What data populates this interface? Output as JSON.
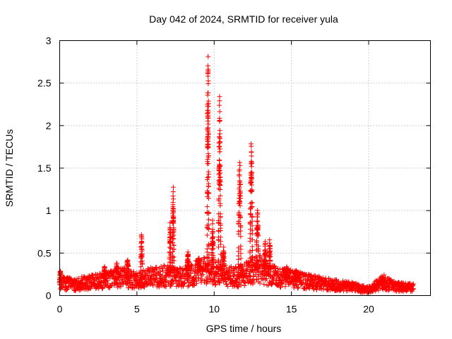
{
  "chart_data": {
    "type": "scatter",
    "title": "Day 042 of 2024, SRMTID for receiver yula",
    "xlabel": "GPS time / hours",
    "ylabel": "SRMTID / TECUs",
    "xlim": [
      0,
      24
    ],
    "ylim": [
      0,
      3
    ],
    "xticks": [
      0,
      5,
      10,
      15,
      20
    ],
    "xtick_labels": [
      "0",
      "5",
      "10",
      "15",
      "20"
    ],
    "yticks": [
      0,
      0.5,
      1,
      1.5,
      2,
      2.5,
      3
    ],
    "ytick_labels": [
      "0",
      "0.5",
      "1",
      "1.5",
      "2",
      "2.5",
      "3"
    ],
    "grid": true,
    "marker": "+",
    "color": "#ff0000",
    "series": [
      {
        "name": "SRMTID",
        "baseline": [
          [
            0.0,
            0.15
          ],
          [
            1.0,
            0.13
          ],
          [
            2.0,
            0.16
          ],
          [
            3.0,
            0.18
          ],
          [
            3.5,
            0.2
          ],
          [
            4.0,
            0.22
          ],
          [
            4.5,
            0.2
          ],
          [
            5.0,
            0.18
          ],
          [
            5.5,
            0.2
          ],
          [
            6.0,
            0.22
          ],
          [
            6.5,
            0.22
          ],
          [
            7.0,
            0.24
          ],
          [
            7.5,
            0.22
          ],
          [
            8.0,
            0.22
          ],
          [
            8.5,
            0.24
          ],
          [
            9.0,
            0.28
          ],
          [
            9.5,
            0.3
          ],
          [
            10.0,
            0.28
          ],
          [
            10.5,
            0.25
          ],
          [
            11.0,
            0.22
          ],
          [
            11.5,
            0.22
          ],
          [
            12.0,
            0.25
          ],
          [
            12.5,
            0.3
          ],
          [
            13.0,
            0.32
          ],
          [
            13.5,
            0.25
          ],
          [
            14.0,
            0.22
          ],
          [
            15.0,
            0.2
          ],
          [
            15.5,
            0.18
          ],
          [
            16.0,
            0.17
          ],
          [
            17.0,
            0.14
          ],
          [
            18.0,
            0.12
          ],
          [
            19.0,
            0.1
          ],
          [
            19.5,
            0.08
          ],
          [
            20.0,
            0.07
          ],
          [
            20.5,
            0.12
          ],
          [
            21.0,
            0.16
          ],
          [
            21.5,
            0.12
          ],
          [
            22.0,
            0.1
          ],
          [
            22.5,
            0.1
          ],
          [
            22.9,
            0.09
          ]
        ],
        "bursts": [
          {
            "center": 0.05,
            "width": 0.12,
            "peak": 0.3
          },
          {
            "center": 2.9,
            "width": 0.12,
            "peak": 0.35
          },
          {
            "center": 3.7,
            "width": 0.15,
            "peak": 0.4
          },
          {
            "center": 4.4,
            "width": 0.15,
            "peak": 0.48
          },
          {
            "center": 5.3,
            "width": 0.12,
            "peak": 0.78
          },
          {
            "center": 7.15,
            "width": 0.1,
            "peak": 0.92
          },
          {
            "center": 7.35,
            "width": 0.1,
            "peak": 1.37
          },
          {
            "center": 8.3,
            "width": 0.15,
            "peak": 0.52
          },
          {
            "center": 9.0,
            "width": 0.2,
            "peak": 0.45
          },
          {
            "center": 9.6,
            "width": 0.12,
            "peak": 2.92
          },
          {
            "center": 9.9,
            "width": 0.12,
            "peak": 0.9
          },
          {
            "center": 10.35,
            "width": 0.15,
            "peak": 2.45
          },
          {
            "center": 10.6,
            "width": 0.12,
            "peak": 0.6
          },
          {
            "center": 11.65,
            "width": 0.18,
            "peak": 1.73
          },
          {
            "center": 12.4,
            "width": 0.18,
            "peak": 1.83
          },
          {
            "center": 12.8,
            "width": 0.15,
            "peak": 1.08
          },
          {
            "center": 13.3,
            "width": 0.12,
            "peak": 0.65
          },
          {
            "center": 13.6,
            "width": 0.12,
            "peak": 0.68
          },
          {
            "center": 14.7,
            "width": 0.15,
            "peak": 0.35
          },
          {
            "center": 15.3,
            "width": 0.2,
            "peak": 0.3
          },
          {
            "center": 20.9,
            "width": 0.2,
            "peak": 0.22
          }
        ]
      }
    ]
  }
}
